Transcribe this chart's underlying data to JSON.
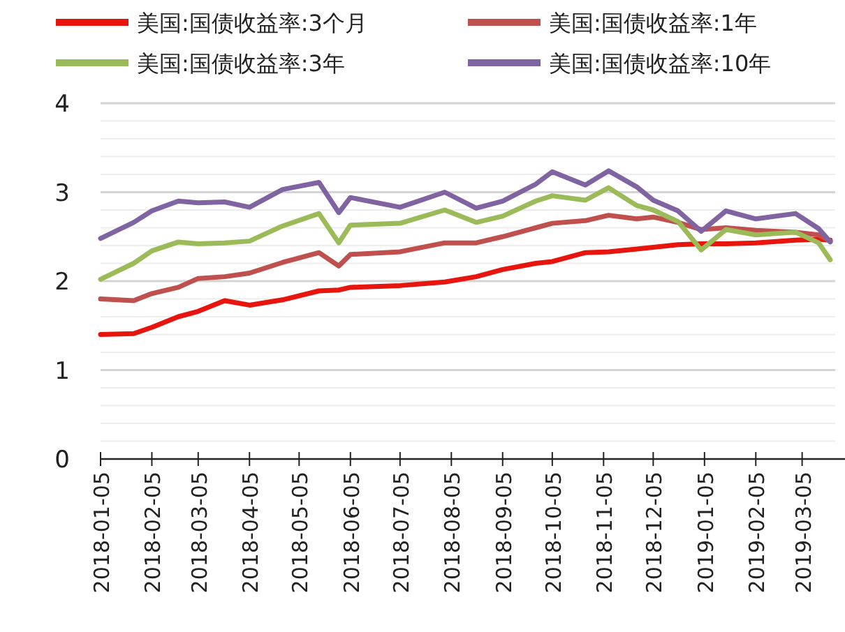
{
  "chart_data": {
    "type": "line",
    "xlim": [
      "2018-01-05",
      "2019-03-25"
    ],
    "xticks": [
      "2018-01-05",
      "2018-02-05",
      "2018-03-05",
      "2018-04-05",
      "2018-05-05",
      "2018-06-05",
      "2018-07-05",
      "2018-08-05",
      "2018-09-05",
      "2018-10-05",
      "2018-11-05",
      "2018-12-05",
      "2019-01-05",
      "2019-02-05",
      "2019-03-05"
    ],
    "ylim": [
      0,
      4
    ],
    "yticks": [
      0,
      {
        "value": 0.2,
        "label": null
      },
      {
        "value": 0.4,
        "label": null
      },
      {
        "value": 0.6,
        "label": null
      },
      {
        "value": 0.8,
        "label": null
      },
      1,
      {
        "value": 1.2,
        "label": null
      },
      {
        "value": 1.4,
        "label": null
      },
      {
        "value": 1.6,
        "label": null
      },
      {
        "value": 1.8,
        "label": null
      },
      2,
      {
        "value": 2.2,
        "label": null
      },
      {
        "value": 2.4,
        "label": null
      },
      {
        "value": 2.6,
        "label": null
      },
      {
        "value": 2.8,
        "label": null
      },
      3,
      {
        "value": 3.2,
        "label": null
      },
      {
        "value": 3.4,
        "label": null
      },
      {
        "value": 3.6,
        "label": null
      },
      {
        "value": 3.8,
        "label": null
      },
      4
    ],
    "grid": "y",
    "legend": "top",
    "x": [
      "2018-01-05",
      "2018-01-25",
      "2018-02-05",
      "2018-02-21",
      "2018-03-05",
      "2018-03-21",
      "2018-04-05",
      "2018-04-25",
      "2018-05-17",
      "2018-05-29",
      "2018-06-05",
      "2018-07-05",
      "2018-08-01",
      "2018-08-20",
      "2018-09-05",
      "2018-09-25",
      "2018-10-05",
      "2018-10-25",
      "2018-11-08",
      "2018-11-25",
      "2018-12-05",
      "2018-12-20",
      "2019-01-03",
      "2019-01-18",
      "2019-02-05",
      "2019-03-01",
      "2019-03-15",
      "2019-03-22"
    ],
    "series": [
      {
        "name": "美国:国债收益率:3个月",
        "color": "#e8150f",
        "values": [
          1.4,
          1.41,
          1.48,
          1.6,
          1.66,
          1.78,
          1.73,
          1.79,
          1.89,
          1.9,
          1.93,
          1.95,
          1.99,
          2.05,
          2.13,
          2.2,
          2.22,
          2.32,
          2.33,
          2.36,
          2.38,
          2.41,
          2.42,
          2.42,
          2.43,
          2.46,
          2.47,
          2.46
        ]
      },
      {
        "name": "美国:国债收益率:1年",
        "color": "#c0504d",
        "values": [
          1.8,
          1.78,
          1.86,
          1.93,
          2.03,
          2.05,
          2.09,
          2.21,
          2.32,
          2.17,
          2.3,
          2.33,
          2.43,
          2.43,
          2.5,
          2.6,
          2.65,
          2.68,
          2.74,
          2.7,
          2.72,
          2.66,
          2.58,
          2.6,
          2.57,
          2.55,
          2.52,
          2.45
        ]
      },
      {
        "name": "美国:国债收益率:3年",
        "color": "#9bbb59",
        "values": [
          2.02,
          2.2,
          2.34,
          2.44,
          2.42,
          2.43,
          2.45,
          2.62,
          2.76,
          2.43,
          2.63,
          2.65,
          2.8,
          2.66,
          2.73,
          2.9,
          2.96,
          2.91,
          3.05,
          2.85,
          2.8,
          2.67,
          2.35,
          2.58,
          2.52,
          2.55,
          2.43,
          2.24
        ]
      },
      {
        "name": "美国:国债收益率:10年",
        "color": "#8064a2",
        "values": [
          2.48,
          2.66,
          2.79,
          2.9,
          2.88,
          2.89,
          2.83,
          3.03,
          3.11,
          2.77,
          2.94,
          2.83,
          3.0,
          2.82,
          2.9,
          3.09,
          3.23,
          3.08,
          3.24,
          3.06,
          2.91,
          2.79,
          2.56,
          2.79,
          2.7,
          2.76,
          2.59,
          2.44
        ]
      }
    ]
  }
}
